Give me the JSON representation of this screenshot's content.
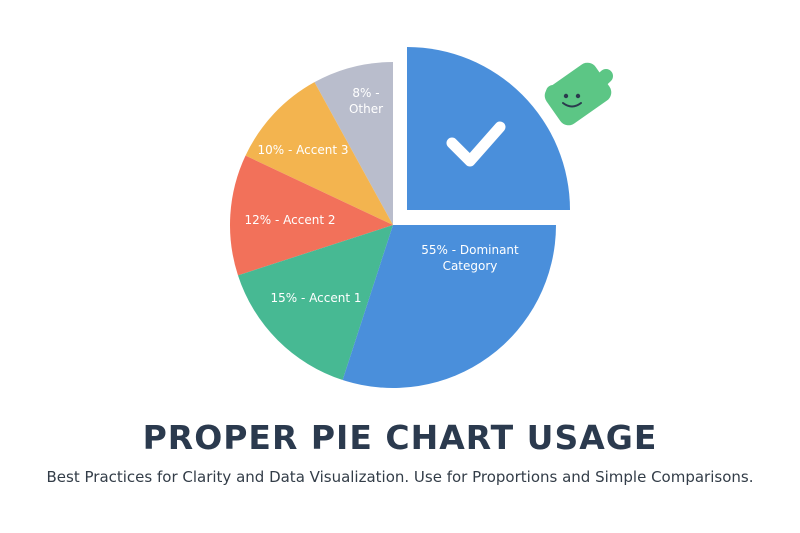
{
  "chart_data": {
    "type": "pie",
    "title": "PROPER PIE CHART USAGE",
    "subtitle": "Best Practices for Clarity and Data Visualization. Use for Proportions and Simple Comparisons.",
    "labels": [
      "55% - Dominant Category",
      "15% - Accent 1",
      "12% - Accent 2",
      "10% - Accent 3",
      "8% - Other"
    ],
    "values": [
      55,
      15,
      12,
      10,
      8
    ],
    "colors": [
      "#4a8fdb",
      "#47b993",
      "#f2715a",
      "#f3b44f",
      "#b9bdcc"
    ]
  }
}
